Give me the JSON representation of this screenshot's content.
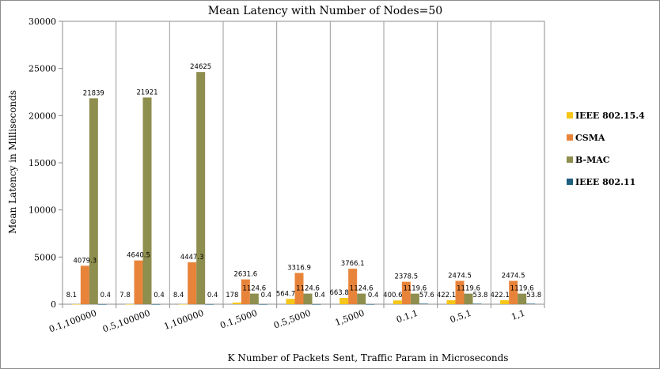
{
  "chart_data": {
    "type": "bar",
    "title": "Mean Latency with Number of Nodes=50",
    "xlabel": "K Number of Packets Sent, Traffic Param in Microseconds",
    "ylabel": "Mean Latency in Milliseconds",
    "ylim": [
      0,
      30000
    ],
    "yticks": [
      0,
      5000,
      10000,
      15000,
      20000,
      25000,
      30000
    ],
    "categories": [
      "0.1,100000",
      "0.5,100000",
      "1,100000",
      "0.1,5000",
      "0.5,5000",
      "1,5000",
      "0.1,1",
      "0.5,1",
      "1,1"
    ],
    "series": [
      {
        "name": "IEEE 802.15.4",
        "color": "#F5C518",
        "values": [
          8.1,
          7.8,
          8.4,
          178,
          564.7,
          663.8,
          400.6,
          422.1,
          422.1
        ],
        "labels": [
          "8.1",
          "7.8",
          "8.4",
          "178",
          "564.7",
          "663.8",
          "400.6",
          "422.1",
          "422.1"
        ]
      },
      {
        "name": "CSMA",
        "color": "#E8843A",
        "values": [
          4079.3,
          4640.5,
          4447.3,
          2631.6,
          3316.9,
          3766.1,
          2378.5,
          2474.5,
          2474.5
        ],
        "labels": [
          "4079.3",
          "4640.5",
          "4447.3",
          "2631.6",
          "3316.9",
          "3766.1",
          "2378.5",
          "2474.5",
          "2474.5"
        ]
      },
      {
        "name": "B-MAC",
        "color": "#8E8E4E",
        "values": [
          21839,
          21921,
          24625,
          1124.6,
          1124.6,
          1124.6,
          1119.6,
          1119.6,
          1119.6
        ],
        "labels": [
          "21839",
          "21921",
          "24625",
          "1124.6",
          "1124.6",
          "1124.6",
          "1119.6",
          "1119.6",
          "1119.6"
        ]
      },
      {
        "name": "IEEE 802.11",
        "color": "#1F5F7F",
        "values": [
          0.4,
          0.4,
          0.4,
          0.4,
          0.4,
          0.4,
          57.6,
          53.8,
          53.8
        ],
        "labels": [
          "0.4",
          "0.4",
          "0.4",
          "0.4",
          "0.4",
          "0.4",
          "57.6",
          "53.8",
          "53.8"
        ]
      }
    ],
    "grid": true,
    "legend_position": "right"
  }
}
